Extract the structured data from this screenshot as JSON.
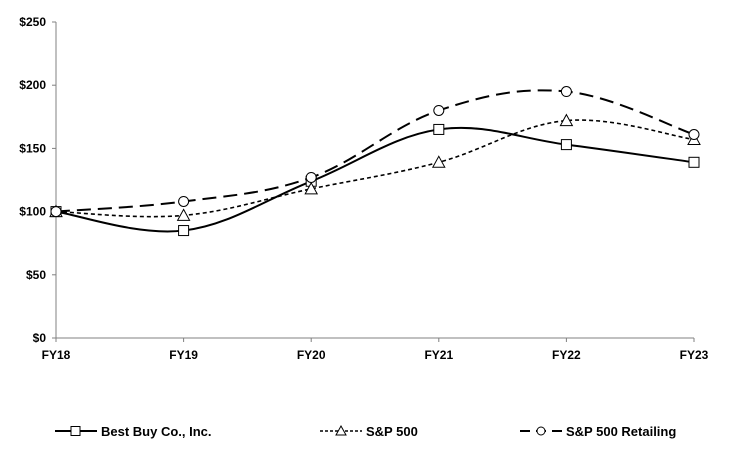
{
  "chart_data": {
    "type": "line",
    "title": "",
    "xlabel": "",
    "ylabel": "",
    "categories": [
      "FY18",
      "FY19",
      "FY20",
      "FY21",
      "FY22",
      "FY23"
    ],
    "yticks": [
      "$0",
      "$50",
      "$100",
      "$150",
      "$200",
      "$250"
    ],
    "ylim": [
      0,
      250
    ],
    "grid": false,
    "legend_position": "bottom",
    "series": [
      {
        "name": "Best Buy Co., Inc.",
        "marker": "square",
        "line": "solid",
        "values": [
          100,
          85,
          124,
          165,
          153,
          139
        ]
      },
      {
        "name": "S&P 500",
        "marker": "triangle",
        "line": "dotted",
        "values": [
          100,
          97,
          118,
          139,
          172,
          157
        ]
      },
      {
        "name": "S&P 500 Retailing",
        "marker": "circle",
        "line": "dashed",
        "values": [
          100,
          108,
          127,
          180,
          195,
          161
        ]
      }
    ]
  },
  "legend": {
    "items": [
      {
        "label": "Best Buy Co., Inc."
      },
      {
        "label": "S&P 500"
      },
      {
        "label": "S&P 500 Retailing"
      }
    ]
  },
  "colors": {
    "line": "#000000",
    "axis": "#808080"
  }
}
